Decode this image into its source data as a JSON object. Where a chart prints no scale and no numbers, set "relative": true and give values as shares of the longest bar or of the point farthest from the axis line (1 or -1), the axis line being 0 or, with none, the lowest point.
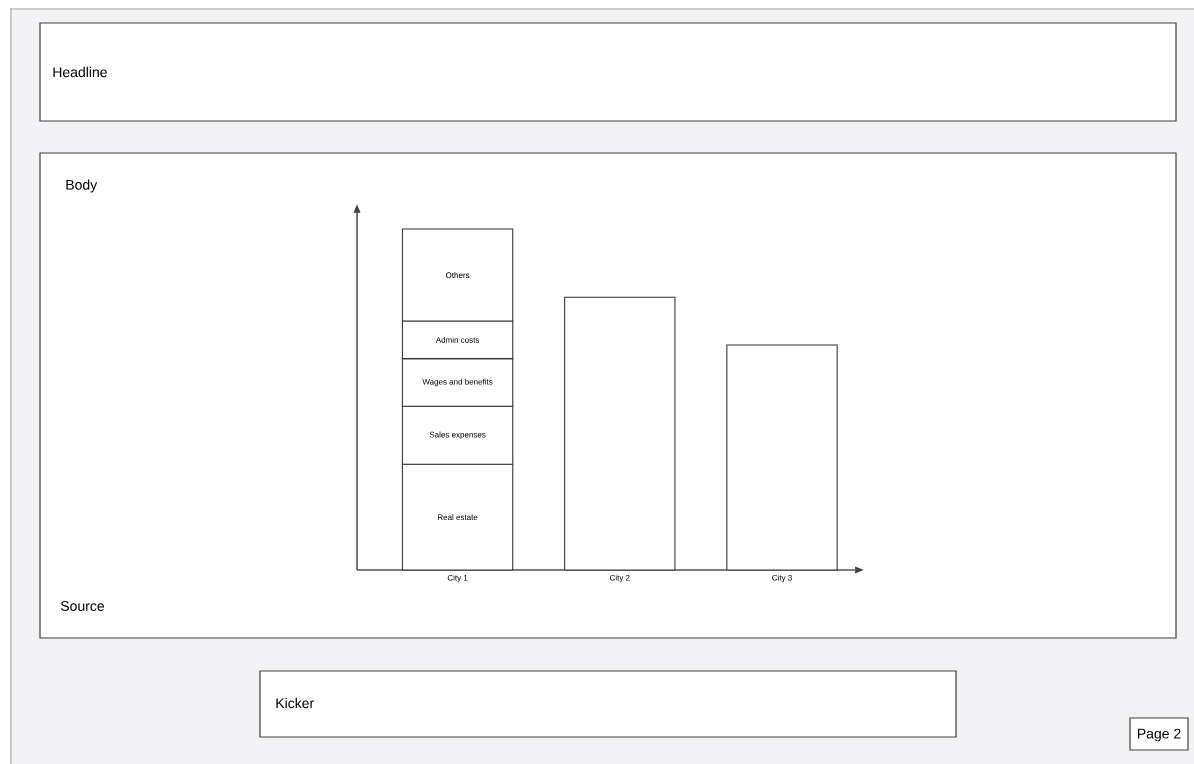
{
  "chart_data": {
    "type": "bar",
    "title": "Headline",
    "annotations": [
      "Body",
      "Source",
      "Kicker",
      "Page 2"
    ],
    "categories": [
      "City 1",
      "City 2",
      "City 3"
    ],
    "relative": true,
    "stacked": true,
    "series": [
      {
        "name": "Real estate",
        "color": "#ffffff",
        "values": [
          0.31,
          null,
          null
        ]
      },
      {
        "name": "Sales expenses",
        "color": "#ffffff",
        "values": [
          0.17,
          null,
          null
        ]
      },
      {
        "name": "Wages and benefits",
        "color": "#ffffff",
        "values": [
          0.14,
          null,
          null
        ]
      },
      {
        "name": "Admin costs",
        "color": "#ffffff",
        "values": [
          0.11,
          null,
          null
        ]
      },
      {
        "name": "Others",
        "color": "#ffffff",
        "values": [
          0.27,
          null,
          null
        ]
      },
      {
        "color": "#ffffff",
        "values": [
          null,
          0.8,
          0.66
        ]
      }
    ]
  }
}
